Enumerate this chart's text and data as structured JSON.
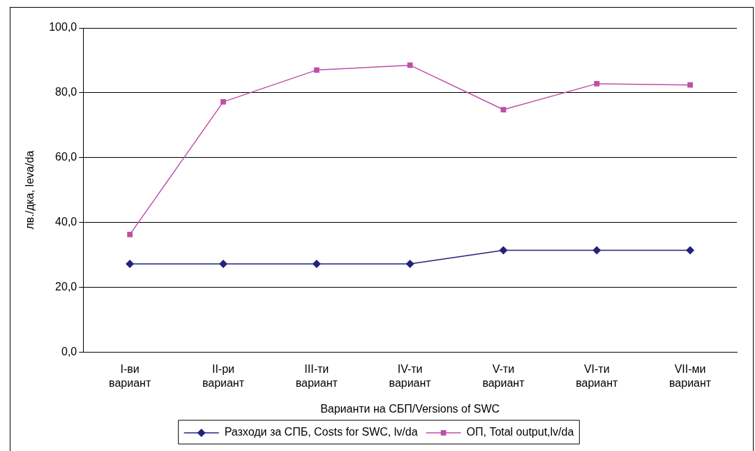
{
  "chart_data": {
    "type": "line",
    "xlabel": "Варианти на СБП/Versions of SWC",
    "ylabel": "лв./дка, leva/da",
    "categories": [
      "I-ви вариант",
      "II-ри вариант",
      "III-ти вариант",
      "IV-ти вариант",
      "V-ти вариант",
      "VI-ти вариант",
      "VII-ми вариант"
    ],
    "series": [
      {
        "name": "Разходи за СПБ, Costs for SWC, lv/da",
        "color": "#23237a",
        "marker": "diamond",
        "values": [
          27.2,
          27.2,
          27.2,
          27.2,
          31.4,
          31.4,
          31.4
        ]
      },
      {
        "name": "ОП, Total output,lv/da",
        "color": "#bf4fa6",
        "marker": "square",
        "values": [
          36.3,
          77.2,
          87.0,
          88.5,
          74.8,
          82.8,
          82.4
        ]
      }
    ],
    "ylim": [
      0,
      100
    ],
    "yticks": [
      {
        "value": 0,
        "label": "0,0"
      },
      {
        "value": 20,
        "label": "20,0"
      },
      {
        "value": 40,
        "label": "40,0"
      },
      {
        "value": 60,
        "label": "60,0"
      },
      {
        "value": 80,
        "label": "80,0"
      },
      {
        "value": 100,
        "label": "100,0"
      }
    ],
    "grid": "y",
    "legend": "bottom",
    "line_style": "solid"
  }
}
